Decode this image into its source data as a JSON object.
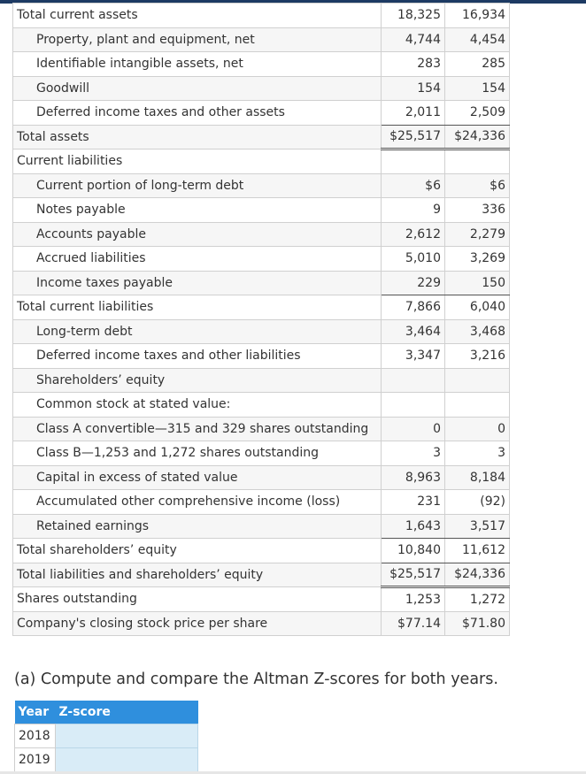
{
  "balance_sheet": {
    "rows": [
      {
        "label": "Total current assets",
        "v2019": "18,325",
        "v2018": "16,934"
      },
      {
        "label": "Property, plant and equipment, net",
        "v2019": "4,744",
        "v2018": "4,454"
      },
      {
        "label": "Identifiable intangible assets, net",
        "v2019": "283",
        "v2018": "285"
      },
      {
        "label": "Goodwill",
        "v2019": "154",
        "v2018": "154"
      },
      {
        "label": "Deferred income taxes and other assets",
        "v2019": "2,011",
        "v2018": "2,509"
      },
      {
        "label": "Total assets",
        "v2019": "$25,517",
        "v2018": "$24,336"
      },
      {
        "label": "Current liabilities",
        "v2019": "",
        "v2018": ""
      },
      {
        "label": "Current portion of long-term debt",
        "v2019": "$6",
        "v2018": "$6"
      },
      {
        "label": "Notes payable",
        "v2019": "9",
        "v2018": "336"
      },
      {
        "label": "Accounts payable",
        "v2019": "2,612",
        "v2018": "2,279"
      },
      {
        "label": "Accrued liabilities",
        "v2019": "5,010",
        "v2018": "3,269"
      },
      {
        "label": "Income taxes payable",
        "v2019": "229",
        "v2018": "150"
      },
      {
        "label": "Total current liabilities",
        "v2019": "7,866",
        "v2018": "6,040"
      },
      {
        "label": "Long-term debt",
        "v2019": "3,464",
        "v2018": "3,468"
      },
      {
        "label": "Deferred income taxes and other liabilities",
        "v2019": "3,347",
        "v2018": "3,216"
      },
      {
        "label": "Shareholders’ equity",
        "v2019": "",
        "v2018": ""
      },
      {
        "label": "Common stock at stated value:",
        "v2019": "",
        "v2018": ""
      },
      {
        "label": "Class A convertible—315 and 329 shares outstanding",
        "v2019": "0",
        "v2018": "0"
      },
      {
        "label": "Class B—1,253 and 1,272 shares outstanding",
        "v2019": "3",
        "v2018": "3"
      },
      {
        "label": "Capital in excess of stated value",
        "v2019": "8,963",
        "v2018": "8,184"
      },
      {
        "label": "Accumulated other comprehensive income (loss)",
        "v2019": "231",
        "v2018": "(92)"
      },
      {
        "label": "Retained earnings",
        "v2019": "1,643",
        "v2018": "3,517"
      },
      {
        "label": "Total shareholders’ equity",
        "v2019": "10,840",
        "v2018": "11,612"
      },
      {
        "label": "Total liabilities and shareholders’ equity",
        "v2019": "$25,517",
        "v2018": "$24,336"
      },
      {
        "label": "Shares outstanding",
        "v2019": "1,253",
        "v2018": "1,272"
      },
      {
        "label": "Company's closing stock price per share",
        "v2019": "$77.14",
        "v2018": "$71.80"
      }
    ]
  },
  "question": {
    "text": "(a) Compute and compare the Altman Z-scores for both years."
  },
  "zscore_table": {
    "header_year": "Year",
    "header_zscore": "Z-score",
    "rows": [
      {
        "year": "2018",
        "zscore": ""
      },
      {
        "year": "2019",
        "zscore": ""
      }
    ]
  }
}
